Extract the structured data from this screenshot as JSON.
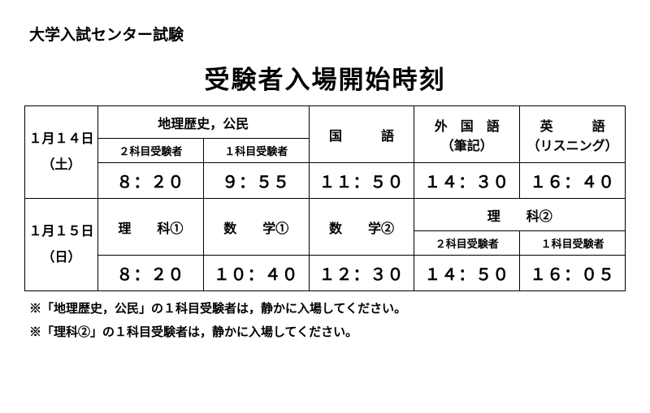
{
  "header": "大学入試センター試験",
  "title": "受験者入場開始時刻",
  "day1": {
    "date_line1": "１月１４日",
    "date_line2": "（土）",
    "geo_civics": {
      "label": "地理歴史，公民",
      "two_subj_label": "２科目受験者",
      "one_subj_label": "１科目受験者",
      "two_subj_time": "８：２０",
      "one_subj_time": "９：５５"
    },
    "kokugo": {
      "label": "国　　　語",
      "time": "１１：５０"
    },
    "foreign": {
      "label_line1": "外　国　語",
      "label_line2": "（筆記）",
      "time": "１４：３０"
    },
    "english": {
      "label_line1": "英　　　語",
      "label_line2": "（リスニング）",
      "time": "１６：４０"
    }
  },
  "day2": {
    "date_line1": "１月１５日",
    "date_line2": "（日）",
    "rika1": {
      "label": "理　　科①",
      "time": "８：２０"
    },
    "math1": {
      "label": "数　　学①",
      "time": "１０：４０"
    },
    "math2": {
      "label": "数　　学②",
      "time": "１２：３０"
    },
    "rika2": {
      "label": "理　　科②",
      "two_subj_label": "２科目受験者",
      "one_subj_label": "１科目受験者",
      "two_subj_time": "１４：５０",
      "one_subj_time": "１６：０５"
    }
  },
  "notes": {
    "n1": "※「地理歴史，公民」の１科目受験者は，静かに入場してください。",
    "n2": "※「理科②」の１科目受験者は，静かに入場してください。"
  }
}
